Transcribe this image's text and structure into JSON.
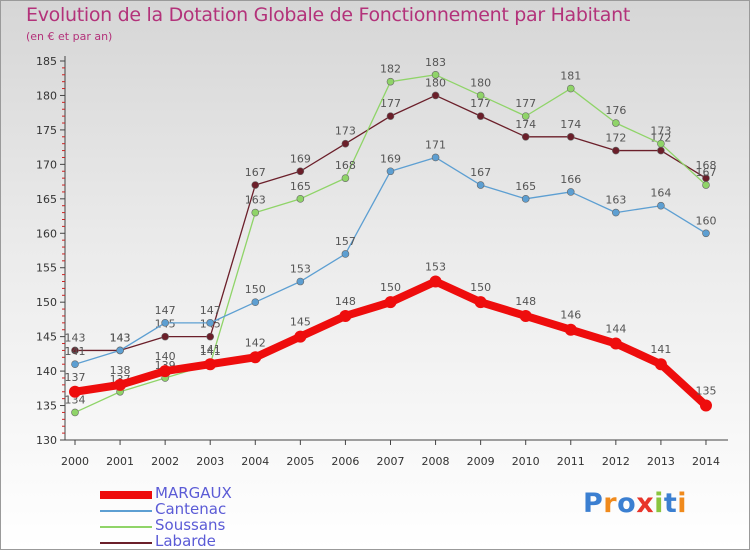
{
  "title": "Evolution de la Dotation Globale de Fonctionnement par Habitant",
  "subtitle": "(en € et par an)",
  "logo_text": "Proxiti",
  "chart_data": {
    "type": "line",
    "x": [
      "2000",
      "2001",
      "2002",
      "2003",
      "2004",
      "2005",
      "2006",
      "2007",
      "2008",
      "2009",
      "2010",
      "2011",
      "2012",
      "2013",
      "2014"
    ],
    "ylim": [
      130,
      185
    ],
    "yticks": [
      130,
      135,
      140,
      145,
      150,
      155,
      160,
      165,
      170,
      175,
      180,
      185
    ],
    "grid": false,
    "legend_position": "bottom-left",
    "series": [
      {
        "name": "Labarde",
        "color": "#6b1f2a",
        "values": [
          143,
          143,
          145,
          145,
          167,
          169,
          173,
          177,
          180,
          177,
          174,
          174,
          172,
          172,
          168
        ]
      },
      {
        "name": "Soussans",
        "color": "#8fd468",
        "values": [
          134,
          137,
          139,
          141,
          163,
          165,
          168,
          182,
          183,
          180,
          177,
          181,
          176,
          173,
          167
        ]
      },
      {
        "name": "Cantenac",
        "color": "#5d9fd2",
        "values": [
          141,
          143,
          147,
          147,
          150,
          153,
          157,
          169,
          171,
          167,
          165,
          166,
          163,
          164,
          160
        ]
      },
      {
        "name": "MARGAUX",
        "color": "#ee0d0d",
        "values": [
          137,
          138,
          140,
          141,
          142,
          145,
          148,
          150,
          153,
          150,
          148,
          146,
          144,
          141,
          135
        ]
      }
    ]
  }
}
